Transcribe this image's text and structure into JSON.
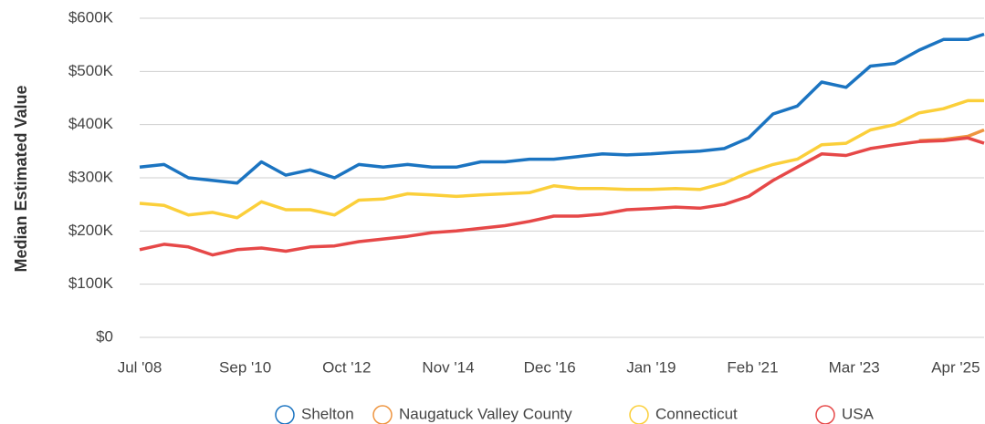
{
  "chart_data": {
    "type": "line",
    "y_label": "Median Estimated Value",
    "x": [
      "2008-07",
      "2009-01",
      "2009-07",
      "2010-01",
      "2010-07",
      "2011-01",
      "2011-07",
      "2012-01",
      "2012-07",
      "2013-01",
      "2013-07",
      "2014-01",
      "2014-07",
      "2015-01",
      "2015-07",
      "2016-01",
      "2016-07",
      "2017-01",
      "2017-07",
      "2018-01",
      "2018-07",
      "2019-01",
      "2019-07",
      "2020-01",
      "2020-07",
      "2021-01",
      "2021-07",
      "2022-01",
      "2022-07",
      "2023-01",
      "2023-07",
      "2024-01",
      "2024-07",
      "2025-01",
      "2025-07",
      "2025-11"
    ],
    "series": [
      {
        "name": "Shelton",
        "color": "#1b74c1",
        "values": [
          320000,
          325000,
          300000,
          295000,
          290000,
          330000,
          305000,
          315000,
          300000,
          325000,
          320000,
          325000,
          320000,
          320000,
          330000,
          330000,
          335000,
          335000,
          340000,
          345000,
          343000,
          345000,
          348000,
          350000,
          355000,
          375000,
          420000,
          435000,
          480000,
          470000,
          510000,
          515000,
          540000,
          560000,
          560000,
          570000
        ]
      },
      {
        "name": "Naugatuck Valley County",
        "color": "#ee9540",
        "values": [
          null,
          null,
          null,
          null,
          null,
          null,
          null,
          null,
          null,
          null,
          null,
          null,
          null,
          null,
          null,
          null,
          null,
          null,
          null,
          null,
          null,
          null,
          null,
          null,
          null,
          null,
          null,
          null,
          null,
          null,
          null,
          null,
          370000,
          372000,
          378000,
          390000
        ]
      },
      {
        "name": "Connecticut",
        "color": "#fbcf3a",
        "values": [
          252000,
          248000,
          230000,
          235000,
          225000,
          255000,
          240000,
          240000,
          230000,
          258000,
          260000,
          270000,
          268000,
          265000,
          268000,
          270000,
          272000,
          285000,
          280000,
          280000,
          278000,
          278000,
          280000,
          278000,
          290000,
          310000,
          325000,
          335000,
          362000,
          365000,
          390000,
          400000,
          422000,
          430000,
          445000,
          445000
        ]
      },
      {
        "name": "USA",
        "color": "#e64848",
        "values": [
          165000,
          175000,
          170000,
          155000,
          165000,
          168000,
          162000,
          170000,
          172000,
          180000,
          185000,
          190000,
          197000,
          200000,
          205000,
          210000,
          218000,
          228000,
          228000,
          232000,
          240000,
          242000,
          245000,
          243000,
          250000,
          265000,
          295000,
          320000,
          345000,
          342000,
          355000,
          362000,
          368000,
          370000,
          375000,
          365000
        ]
      }
    ],
    "xlim": [
      "2008-07",
      "2025-11"
    ],
    "xticks": [
      {
        "value": "2008-07",
        "label": "Jul '08"
      },
      {
        "value": "2010-09",
        "label": "Sep '10"
      },
      {
        "value": "2012-10",
        "label": "Oct '12"
      },
      {
        "value": "2014-11",
        "label": "Nov '14"
      },
      {
        "value": "2016-12",
        "label": "Dec '16"
      },
      {
        "value": "2019-01",
        "label": "Jan '19"
      },
      {
        "value": "2021-02",
        "label": "Feb '21"
      },
      {
        "value": "2023-03",
        "label": "Mar '23"
      },
      {
        "value": "2025-04",
        "label": "Apr '25"
      }
    ],
    "ylim": [
      0,
      600000
    ],
    "yticks": [
      {
        "value": 0,
        "label": "$0"
      },
      {
        "value": 100000,
        "label": "$100K"
      },
      {
        "value": 200000,
        "label": "$200K"
      },
      {
        "value": 300000,
        "label": "$300K"
      },
      {
        "value": 400000,
        "label": "$400K"
      },
      {
        "value": 500000,
        "label": "$500K"
      },
      {
        "value": 600000,
        "label": "$600K"
      }
    ],
    "grid": true,
    "legend": "bottom"
  }
}
